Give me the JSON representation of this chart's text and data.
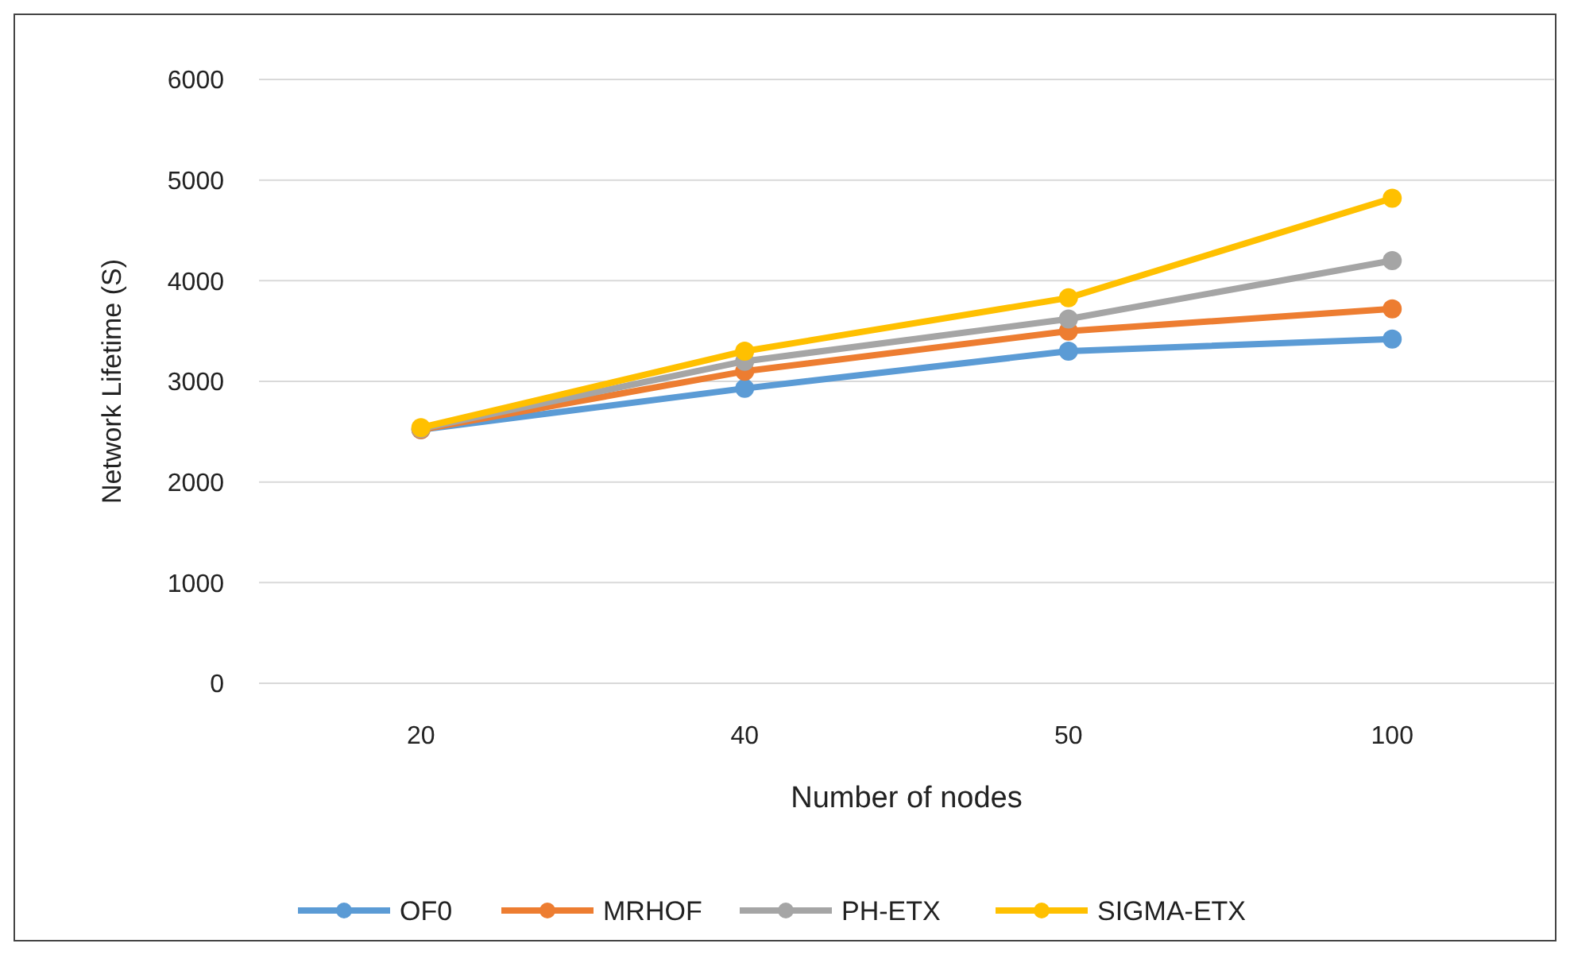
{
  "chart_data": {
    "type": "line",
    "xlabel": "Number of  nodes",
    "ylabel": "Network Lifetime (S)",
    "categories": [
      "20",
      "40",
      "50",
      "100"
    ],
    "series": [
      {
        "name": "OF0",
        "color": "#5b9bd5",
        "values": [
          2520,
          2930,
          3300,
          3420
        ]
      },
      {
        "name": "MRHOF",
        "color": "#ed7d31",
        "values": [
          2520,
          3100,
          3500,
          3720
        ]
      },
      {
        "name": "PH-ETX",
        "color": "#a5a5a5",
        "values": [
          2530,
          3200,
          3620,
          4200
        ]
      },
      {
        "name": "SIGMA-ETX",
        "color": "#ffc000",
        "values": [
          2540,
          3300,
          3830,
          4820
        ]
      }
    ],
    "ylim": [
      0,
      6000
    ],
    "yticks": [
      0,
      1000,
      2000,
      3000,
      4000,
      5000,
      6000
    ],
    "grid": "y",
    "legend": "bottom",
    "marker": "circle",
    "line_style": "solid"
  }
}
